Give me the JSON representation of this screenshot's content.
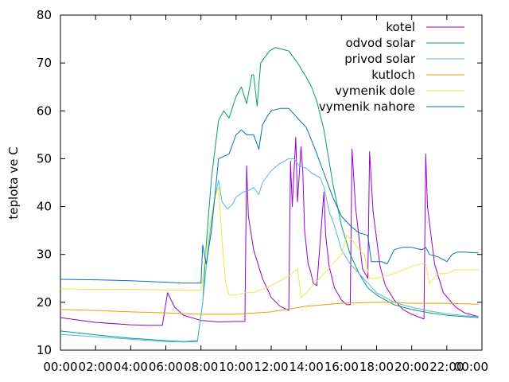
{
  "chart_data": {
    "type": "line",
    "title": "",
    "xlabel": "",
    "ylabel": "teplota ve C",
    "ylim": [
      10,
      80
    ],
    "xlim": [
      0,
      24
    ],
    "y_ticks": [
      {
        "value": 10,
        "label": "10"
      },
      {
        "value": 20,
        "label": "20"
      },
      {
        "value": 30,
        "label": "30"
      },
      {
        "value": 40,
        "label": "40"
      },
      {
        "value": 50,
        "label": "50"
      },
      {
        "value": 60,
        "label": "60"
      },
      {
        "value": 70,
        "label": "70"
      },
      {
        "value": 80,
        "label": "80"
      }
    ],
    "x_ticks": [
      {
        "value": 0,
        "label": "00:00"
      },
      {
        "value": 2,
        "label": "02:00"
      },
      {
        "value": 4,
        "label": "04:00"
      },
      {
        "value": 6,
        "label": "06:00"
      },
      {
        "value": 8,
        "label": "08:00"
      },
      {
        "value": 10,
        "label": "10:00"
      },
      {
        "value": 12,
        "label": "12:00"
      },
      {
        "value": 14,
        "label": "14:00"
      },
      {
        "value": 16,
        "label": "16:00"
      },
      {
        "value": 18,
        "label": "18:00"
      },
      {
        "value": 20,
        "label": "20:00"
      },
      {
        "value": 22,
        "label": "22:00"
      },
      {
        "value": 24,
        "label": "00:00"
      }
    ],
    "grid": false,
    "legend_position": "top-right",
    "series": [
      {
        "name": "kotel",
        "color": "#9400d3",
        "x": [
          0,
          2,
          4,
          5,
          5.8,
          6.1,
          6.5,
          7,
          8,
          9,
          10,
          10.5,
          10.6,
          10.7,
          11,
          11.5,
          12,
          12.5,
          13,
          13.1,
          13.2,
          13.4,
          13.5,
          13.7,
          13.8,
          13.9,
          14.1,
          14.2,
          14.4,
          14.6,
          15,
          15.1,
          15.3,
          15.6,
          16,
          16.3,
          16.5,
          16.6,
          16.8,
          17.2,
          17.5,
          17.6,
          17.8,
          18.2,
          18.5,
          19,
          19.5,
          20,
          20.5,
          20.7,
          20.8,
          20.9,
          21.3,
          21.8,
          22.5,
          23,
          23.8
        ],
        "y": [
          16.8,
          15.8,
          15.3,
          15.2,
          15.2,
          22,
          19,
          17.3,
          16.2,
          15.9,
          16,
          16,
          48.5,
          38,
          31,
          25,
          21,
          19.2,
          18.3,
          49.5,
          40,
          54.5,
          41,
          52.5,
          47,
          35,
          28,
          27,
          24,
          23.5,
          43,
          34,
          27.5,
          23,
          20.5,
          19.5,
          19.5,
          52,
          40,
          27,
          25,
          51.5,
          39,
          27.5,
          23.5,
          20.5,
          18.5,
          17.5,
          16.8,
          16.5,
          51,
          40,
          28,
          22,
          19,
          17.8,
          17
        ]
      },
      {
        "name": "odvod solar",
        "color": "#009e73",
        "x": [
          0,
          2,
          4,
          6,
          7,
          7.8,
          8.1,
          8.3,
          8.6,
          9,
          9.3,
          9.6,
          10,
          10.3,
          10.6,
          10.9,
          11,
          11.2,
          11.4,
          11.7,
          11.9,
          12.2,
          12.5,
          13,
          13.5,
          14,
          14.3,
          14.6,
          15,
          15.5,
          16,
          16.5,
          17,
          17.5,
          18,
          18.5,
          19,
          20,
          21,
          22,
          23,
          23.8
        ],
        "y": [
          14,
          13.2,
          12.5,
          12,
          11.8,
          12,
          20,
          32,
          46,
          58,
          60,
          58.5,
          63,
          65,
          61.5,
          67.5,
          67.5,
          61,
          70,
          71.5,
          72.5,
          73.2,
          73,
          72.5,
          70,
          67,
          65,
          62,
          56,
          45,
          36,
          30,
          26,
          23,
          21.5,
          20.5,
          19.5,
          18.5,
          17.8,
          17.3,
          17,
          16.8
        ]
      },
      {
        "name": "privod solar",
        "color": "#56b4e9",
        "x": [
          0,
          2,
          4,
          6,
          7,
          7.8,
          8.1,
          8.4,
          8.7,
          9,
          9.2,
          9.5,
          9.8,
          10,
          10.4,
          10.8,
          11,
          11.3,
          11.5,
          12,
          12.5,
          13,
          13.3,
          13.6,
          14,
          14.3,
          14.8,
          15,
          15.3,
          15.6,
          16,
          16.5,
          17,
          17.5,
          18,
          18.5,
          19,
          20,
          21,
          22,
          23,
          23.8
        ],
        "y": [
          13.3,
          12.8,
          12.3,
          11.8,
          11.7,
          11.8,
          20,
          31,
          40,
          45.5,
          41,
          39.5,
          40.5,
          42,
          43,
          43.5,
          44,
          42.5,
          45,
          47.5,
          49,
          50,
          50,
          48.5,
          48,
          47,
          46,
          44,
          39,
          36,
          31,
          28,
          26,
          24,
          22,
          21,
          20,
          19,
          18.2,
          17.6,
          17.2,
          17
        ]
      },
      {
        "name": "kutloch",
        "color": "#e69f00",
        "x": [
          0,
          2,
          4,
          6,
          8,
          10,
          12,
          14,
          16,
          18,
          19,
          20,
          22,
          23.8
        ],
        "y": [
          18.5,
          18.3,
          18,
          17.8,
          17.5,
          17.5,
          18,
          19.2,
          19.8,
          20,
          20,
          19.8,
          19.8,
          19.6
        ]
      },
      {
        "name": "vymenik dole",
        "color": "#f0e442",
        "x": [
          0,
          2,
          4,
          6,
          7.5,
          8,
          8.2,
          8.5,
          8.8,
          9,
          9.2,
          9.4,
          9.6,
          10,
          10.5,
          11,
          12,
          13,
          13.5,
          13.7,
          14,
          14.5,
          15,
          15.5,
          16,
          16.3,
          16.6,
          17,
          17.3,
          17.6,
          18,
          19,
          20,
          20.5,
          20.8,
          21,
          21.5,
          22,
          22.5,
          23,
          23.8
        ],
        "y": [
          22.8,
          22.7,
          22.7,
          22.6,
          22.5,
          22.5,
          28,
          36,
          42,
          44,
          33,
          24,
          21.5,
          21.5,
          22,
          22,
          23.5,
          25.5,
          27,
          21,
          22,
          24,
          26,
          28,
          30,
          34,
          33,
          31,
          30,
          25,
          25,
          26,
          27.5,
          28,
          28,
          24,
          26,
          26,
          26.8,
          26.8,
          26.8
        ]
      },
      {
        "name": "vymenik nahore",
        "color": "#0072b2",
        "x": [
          0,
          2,
          4,
          6,
          7,
          7.8,
          8,
          8.1,
          8.3,
          8.6,
          9,
          9.3,
          9.6,
          10,
          10.3,
          10.6,
          11,
          11.3,
          11.5,
          11.8,
          12,
          12.5,
          13,
          13.5,
          14,
          14.5,
          15,
          15.5,
          16,
          16.5,
          17,
          17.5,
          17.7,
          17.9,
          18.3,
          18.6,
          19,
          19.5,
          20,
          20.3,
          20.6,
          20.8,
          21,
          21.5,
          22,
          22.3,
          22.6,
          23,
          23.8
        ],
        "y": [
          24.8,
          24.7,
          24.5,
          24.2,
          24,
          24,
          24,
          32,
          28,
          35,
          50,
          50.5,
          51,
          55,
          56,
          55,
          55,
          52,
          57,
          59,
          60,
          60.5,
          60.5,
          58.5,
          56.5,
          52,
          47,
          42,
          38,
          36,
          34.5,
          34,
          28.5,
          28.5,
          28.5,
          28,
          31,
          31.5,
          31.5,
          31.2,
          31,
          31.5,
          30,
          29.5,
          28.5,
          30,
          30.5,
          30.5,
          30.3
        ]
      }
    ]
  }
}
